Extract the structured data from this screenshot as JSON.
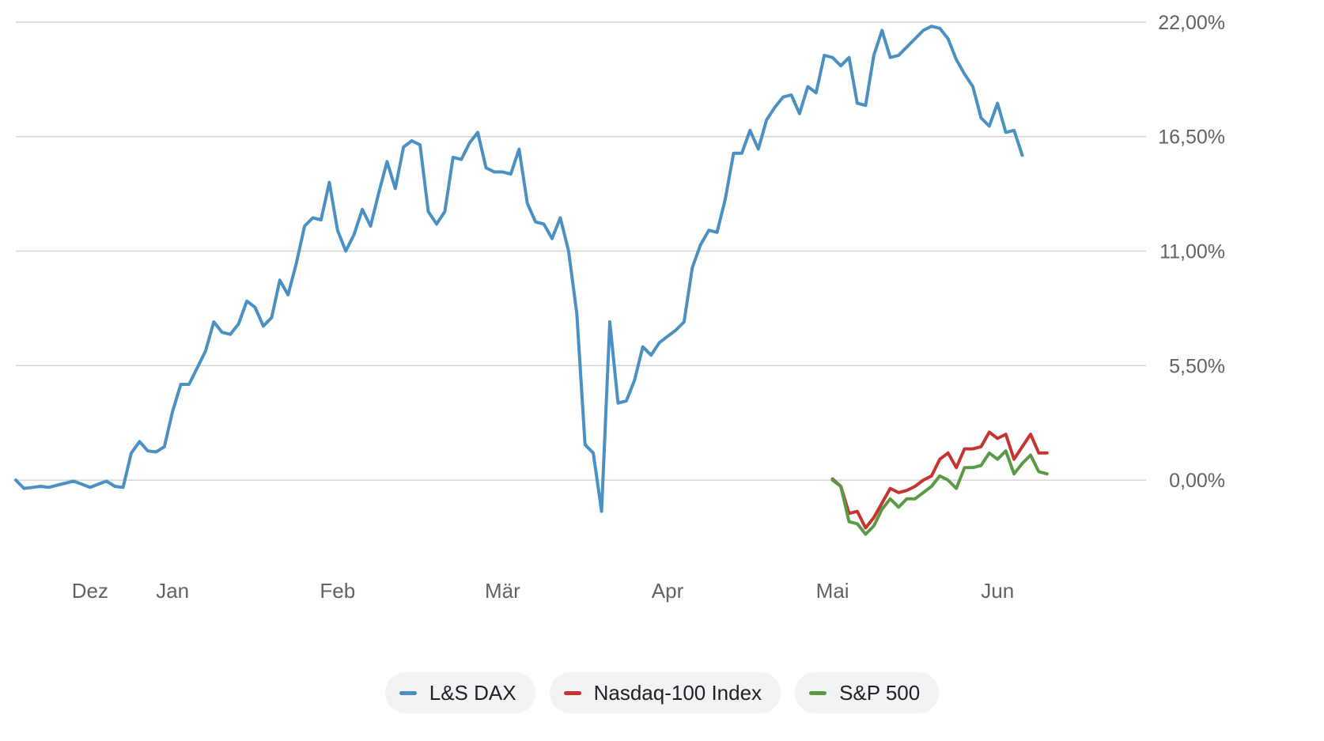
{
  "chart_data": {
    "type": "line",
    "y_ticks": [
      "22,00%",
      "16,50%",
      "11,00%",
      "5,50%",
      "0,00%"
    ],
    "y_tick_values": [
      22,
      16.5,
      11,
      5.5,
      0
    ],
    "ylim": [
      -4.1,
      22.3
    ],
    "x_tick_labels": [
      "Dez",
      "Jan",
      "Feb",
      "Mär",
      "Apr",
      "Mai",
      "Jun"
    ],
    "x_tick_positions": [
      23,
      33,
      53,
      73,
      93,
      113,
      133
    ],
    "xlim": [
      14,
      151
    ],
    "grid": true,
    "legend_position": "bottom",
    "series": [
      {
        "name": "L&S DAX",
        "color": "#4a90c2",
        "points": [
          [
            14,
            0
          ],
          [
            15,
            -0.4
          ],
          [
            16,
            -0.35
          ],
          [
            17,
            -0.3
          ],
          [
            18,
            -0.35
          ],
          [
            19,
            -0.25
          ],
          [
            20,
            -0.15
          ],
          [
            21,
            -0.05
          ],
          [
            22,
            -0.2
          ],
          [
            23,
            -0.35
          ],
          [
            24,
            -0.2
          ],
          [
            25,
            -0.05
          ],
          [
            26,
            -0.3
          ],
          [
            27,
            -0.35
          ],
          [
            28,
            1.3
          ],
          [
            29,
            1.85
          ],
          [
            30,
            1.4
          ],
          [
            31,
            1.35
          ],
          [
            32,
            1.6
          ],
          [
            33,
            3.3
          ],
          [
            34,
            4.6
          ],
          [
            35,
            4.6
          ],
          [
            36,
            5.4
          ],
          [
            37,
            6.2
          ],
          [
            38,
            7.6
          ],
          [
            39,
            7.1
          ],
          [
            40,
            7.0
          ],
          [
            41,
            7.5
          ],
          [
            42,
            8.6
          ],
          [
            43,
            8.3
          ],
          [
            44,
            7.4
          ],
          [
            45,
            7.8
          ],
          [
            46,
            9.6
          ],
          [
            47,
            8.9
          ],
          [
            48,
            10.4
          ],
          [
            49,
            12.2
          ],
          [
            50,
            12.6
          ],
          [
            51,
            12.5
          ],
          [
            52,
            14.3
          ],
          [
            53,
            12.0
          ],
          [
            54,
            11.0
          ],
          [
            55,
            11.8
          ],
          [
            56,
            13.0
          ],
          [
            57,
            12.2
          ],
          [
            58,
            13.8
          ],
          [
            59,
            15.3
          ],
          [
            60,
            14.0
          ],
          [
            61,
            16.0
          ],
          [
            62,
            16.3
          ],
          [
            63,
            16.1
          ],
          [
            64,
            12.9
          ],
          [
            65,
            12.3
          ],
          [
            66,
            12.9
          ],
          [
            67,
            15.5
          ],
          [
            68,
            15.4
          ],
          [
            69,
            16.2
          ],
          [
            70,
            16.7
          ],
          [
            71,
            15.0
          ],
          [
            72,
            14.8
          ],
          [
            73,
            14.8
          ],
          [
            74,
            14.7
          ],
          [
            75,
            15.9
          ],
          [
            76,
            13.3
          ],
          [
            77,
            12.4
          ],
          [
            78,
            12.3
          ],
          [
            79,
            11.6
          ],
          [
            80,
            12.6
          ],
          [
            81,
            11.0
          ],
          [
            82,
            8.0
          ],
          [
            83,
            1.7
          ],
          [
            84,
            1.3
          ],
          [
            85,
            -1.5
          ],
          [
            86,
            7.6
          ],
          [
            87,
            3.7
          ],
          [
            88,
            3.8
          ],
          [
            89,
            4.8
          ],
          [
            90,
            6.4
          ],
          [
            91,
            6.0
          ],
          [
            92,
            6.6
          ],
          [
            93,
            6.9
          ],
          [
            94,
            7.2
          ],
          [
            95,
            7.6
          ],
          [
            96,
            10.2
          ],
          [
            97,
            11.3
          ],
          [
            98,
            12.0
          ],
          [
            99,
            11.9
          ],
          [
            100,
            13.5
          ],
          [
            101,
            15.7
          ],
          [
            102,
            15.7
          ],
          [
            103,
            16.8
          ],
          [
            104,
            15.9
          ],
          [
            105,
            17.3
          ],
          [
            106,
            17.9
          ],
          [
            107,
            18.4
          ],
          [
            108,
            18.5
          ],
          [
            109,
            17.6
          ],
          [
            110,
            18.9
          ],
          [
            111,
            18.6
          ],
          [
            112,
            20.4
          ],
          [
            113,
            20.3
          ],
          [
            114,
            19.9
          ],
          [
            115,
            20.3
          ],
          [
            116,
            18.1
          ],
          [
            117,
            18.0
          ],
          [
            118,
            20.4
          ],
          [
            119,
            21.6
          ],
          [
            120,
            20.3
          ],
          [
            121,
            20.4
          ],
          [
            122,
            20.8
          ],
          [
            123,
            21.2
          ],
          [
            124,
            21.6
          ],
          [
            125,
            21.8
          ],
          [
            126,
            21.7
          ],
          [
            127,
            21.2
          ],
          [
            128,
            20.2
          ],
          [
            129,
            19.5
          ],
          [
            130,
            18.9
          ],
          [
            131,
            17.4
          ],
          [
            132,
            17.0
          ],
          [
            133,
            18.1
          ],
          [
            134,
            16.7
          ],
          [
            135,
            16.8
          ],
          [
            136,
            15.6
          ]
        ]
      },
      {
        "name": "Nasdaq-100 Index",
        "color": "#c5342f",
        "points": [
          [
            113,
            0.05
          ],
          [
            114,
            -0.3
          ],
          [
            115,
            -1.6
          ],
          [
            116,
            -1.5
          ],
          [
            117,
            -2.3
          ],
          [
            118,
            -1.8
          ],
          [
            119,
            -1.1
          ],
          [
            120,
            -0.4
          ],
          [
            121,
            -0.6
          ],
          [
            122,
            -0.5
          ],
          [
            123,
            -0.3
          ],
          [
            124,
            0.0
          ],
          [
            125,
            0.2
          ],
          [
            126,
            1.0
          ],
          [
            127,
            1.3
          ],
          [
            128,
            0.6
          ],
          [
            129,
            1.5
          ],
          [
            130,
            1.5
          ],
          [
            131,
            1.6
          ],
          [
            132,
            2.3
          ],
          [
            133,
            2.0
          ],
          [
            134,
            2.2
          ],
          [
            135,
            1.0
          ],
          [
            136,
            1.6
          ],
          [
            137,
            2.2
          ],
          [
            138,
            1.3
          ],
          [
            139,
            1.3
          ]
        ]
      },
      {
        "name": "S&P 500",
        "color": "#5b9a45",
        "points": [
          [
            113,
            0.0
          ],
          [
            114,
            -0.3
          ],
          [
            115,
            -2.0
          ],
          [
            116,
            -2.1
          ],
          [
            117,
            -2.6
          ],
          [
            118,
            -2.2
          ],
          [
            119,
            -1.4
          ],
          [
            120,
            -0.9
          ],
          [
            121,
            -1.3
          ],
          [
            122,
            -0.9
          ],
          [
            123,
            -0.9
          ],
          [
            124,
            -0.6
          ],
          [
            125,
            -0.3
          ],
          [
            126,
            0.2
          ],
          [
            127,
            0.0
          ],
          [
            128,
            -0.4
          ],
          [
            129,
            0.6
          ],
          [
            130,
            0.6
          ],
          [
            131,
            0.7
          ],
          [
            132,
            1.3
          ],
          [
            133,
            1.0
          ],
          [
            134,
            1.4
          ],
          [
            135,
            0.3
          ],
          [
            136,
            0.8
          ],
          [
            137,
            1.2
          ],
          [
            138,
            0.4
          ],
          [
            139,
            0.3
          ]
        ]
      }
    ]
  },
  "legend": {
    "items": [
      {
        "label": "L&S DAX",
        "color": "#4a90c2"
      },
      {
        "label": "Nasdaq-100 Index",
        "color": "#c5342f"
      },
      {
        "label": "S&P 500",
        "color": "#5b9a45"
      }
    ]
  }
}
